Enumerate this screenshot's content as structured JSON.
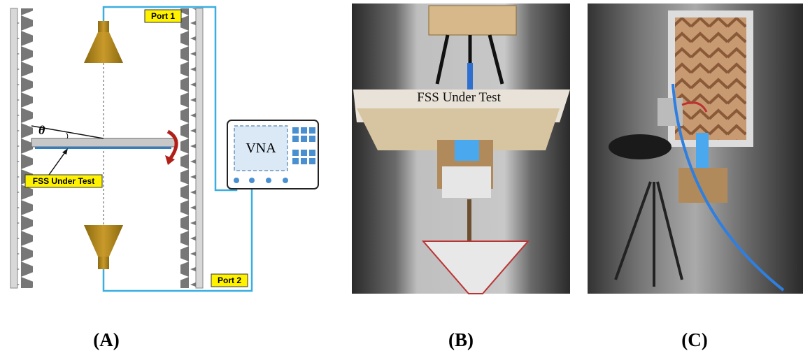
{
  "diagram": {
    "port_1": "Port 1",
    "port_2": "Port 2",
    "angle": "θ",
    "instrument": "VNA",
    "sample_label": "FSS Under Test"
  },
  "photo_b": {
    "banner": "FSS Under Test"
  },
  "panels": [
    "(A)",
    "(B)",
    "(C)"
  ]
}
